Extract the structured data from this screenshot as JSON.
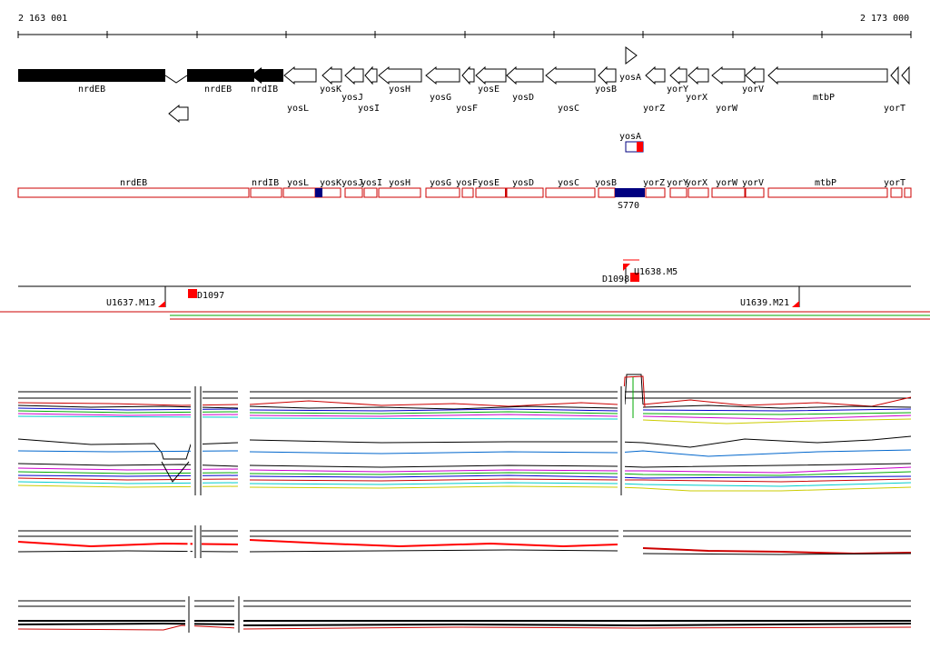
{
  "ruler": {
    "start_label": "2 163 001",
    "end_label": "2 173 000"
  },
  "colors": {
    "gene_fill": "#000000",
    "gene_open": "#ffffff",
    "annotation_box": "#cc0000",
    "highlight_blue": "#000080",
    "red_marker": "#ff0000",
    "green_line": "#00aa00"
  },
  "genes": {
    "labels": [
      "nrdEB",
      "nrdEB",
      "nrdIB",
      "yosK",
      "yosJ",
      "yosH",
      "yosG",
      "yosE",
      "yosD",
      "yosB",
      "yosA",
      "yorY",
      "yorX",
      "yorV",
      "mtbP",
      "yosL",
      "yosI",
      "yosF",
      "yosC",
      "yorZ",
      "yorW",
      "yorT"
    ],
    "filled": [
      "nrdEB",
      "nrdEB",
      "nrdIB"
    ],
    "reverse_strand_icon": "left-arrow-outline-icon",
    "forward_strand_icon": "right-triangle-outline-icon"
  },
  "yosA_track": {
    "label": "yosA"
  },
  "annotation_track": {
    "labels": [
      "nrdEB",
      "nrdIB",
      "yosL",
      "yosK",
      "yosJ",
      "yosI",
      "yosH",
      "yosG",
      "yosF",
      "yosE",
      "yosD",
      "yosC",
      "yosB",
      "yorZ",
      "yorY",
      "yorX",
      "yorW",
      "yorV",
      "mtbP",
      "yorT"
    ],
    "highlight_label": "S770"
  },
  "marker_track": {
    "markers": [
      "U1637.M13",
      "D1097",
      "D1098",
      "U1638.M5",
      "U1639.M21"
    ]
  },
  "profile_tracks": [
    "profile-track-1",
    "profile-track-2",
    "profile-track-3",
    "profile-track-4"
  ]
}
